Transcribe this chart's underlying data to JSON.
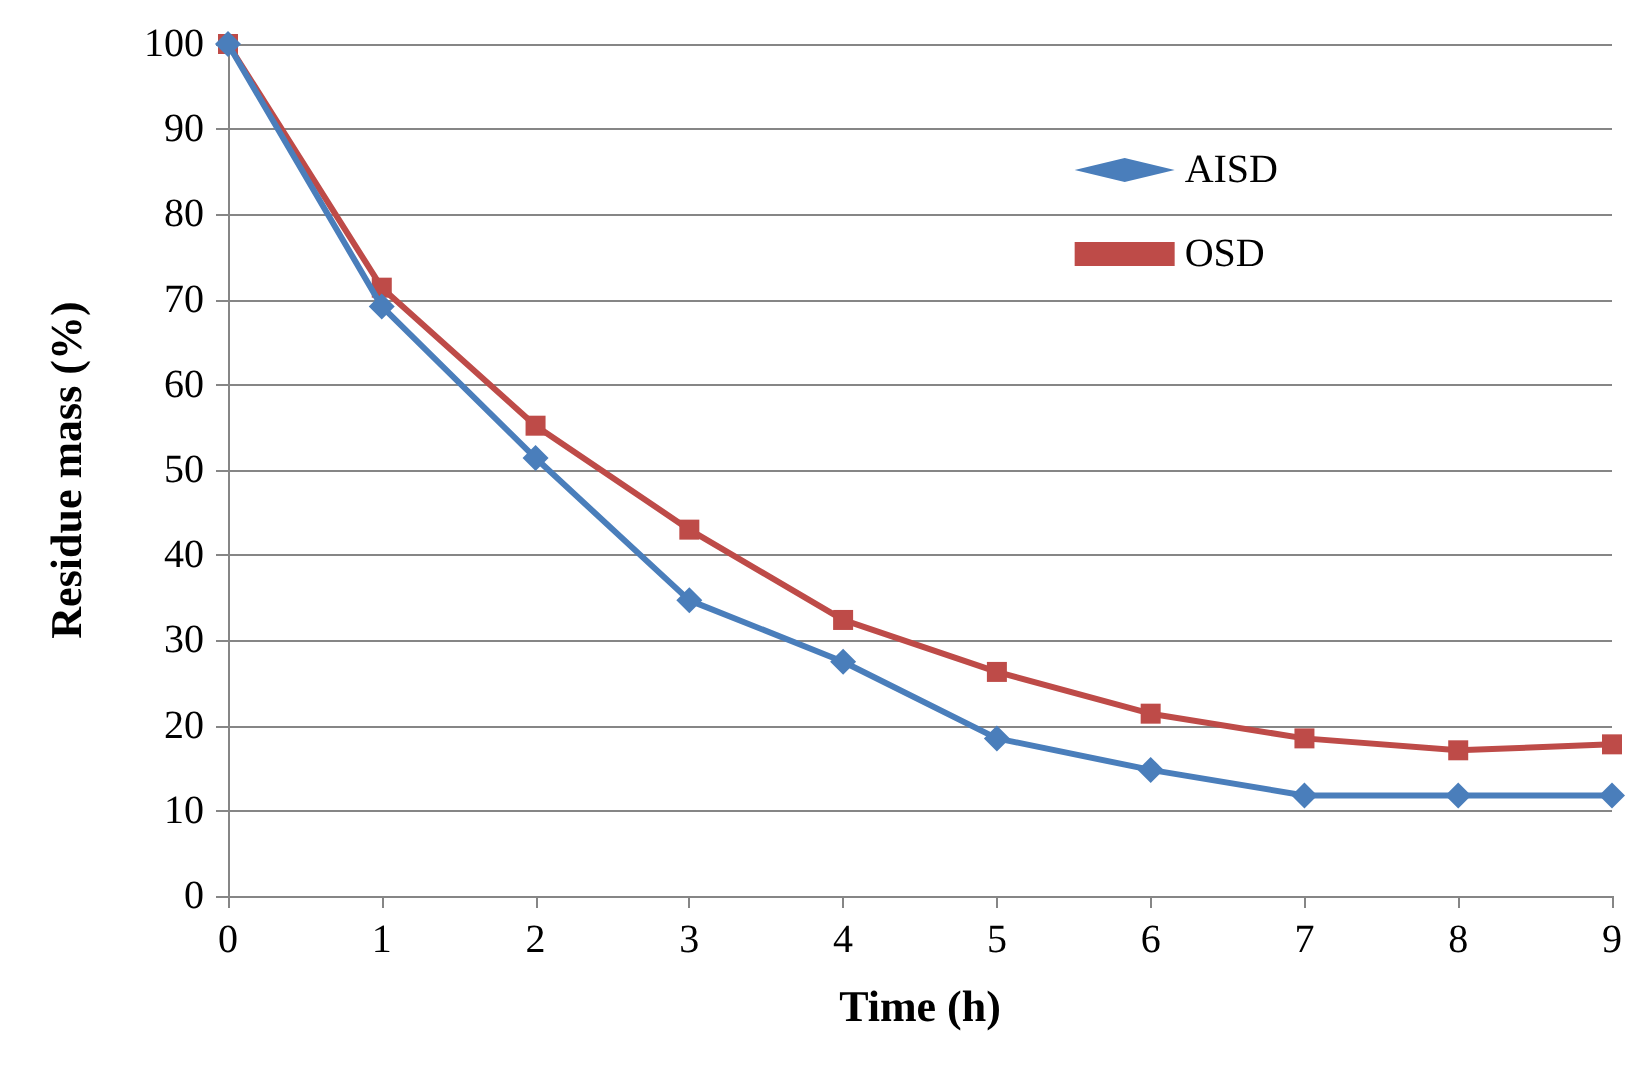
{
  "chart_data": {
    "type": "line",
    "xlabel": "Time (h)",
    "ylabel": "Residue mass (%)",
    "x": [
      0,
      1,
      2,
      3,
      4,
      5,
      6,
      7,
      8,
      9
    ],
    "series": [
      {
        "name": "AISD",
        "color": "#4a7ebb",
        "marker": "diamond",
        "values": [
          100,
          69.2,
          51.4,
          34.7,
          27.5,
          18.5,
          14.8,
          11.8,
          11.8,
          11.8
        ]
      },
      {
        "name": "OSD",
        "color": "#be4b48",
        "marker": "square",
        "values": [
          100,
          71.4,
          55.2,
          43,
          32.4,
          26.3,
          21.4,
          18.5,
          17.1,
          17.8
        ]
      }
    ],
    "xlim": [
      0,
      9
    ],
    "xticks": [
      0,
      1,
      2,
      3,
      4,
      5,
      6,
      7,
      8,
      9
    ],
    "ylim": [
      0,
      100
    ],
    "yticks": [
      0,
      10,
      20,
      30,
      40,
      50,
      60,
      70,
      80,
      90,
      100
    ],
    "grid": "y",
    "legend": "top right",
    "line_style": "solid"
  }
}
